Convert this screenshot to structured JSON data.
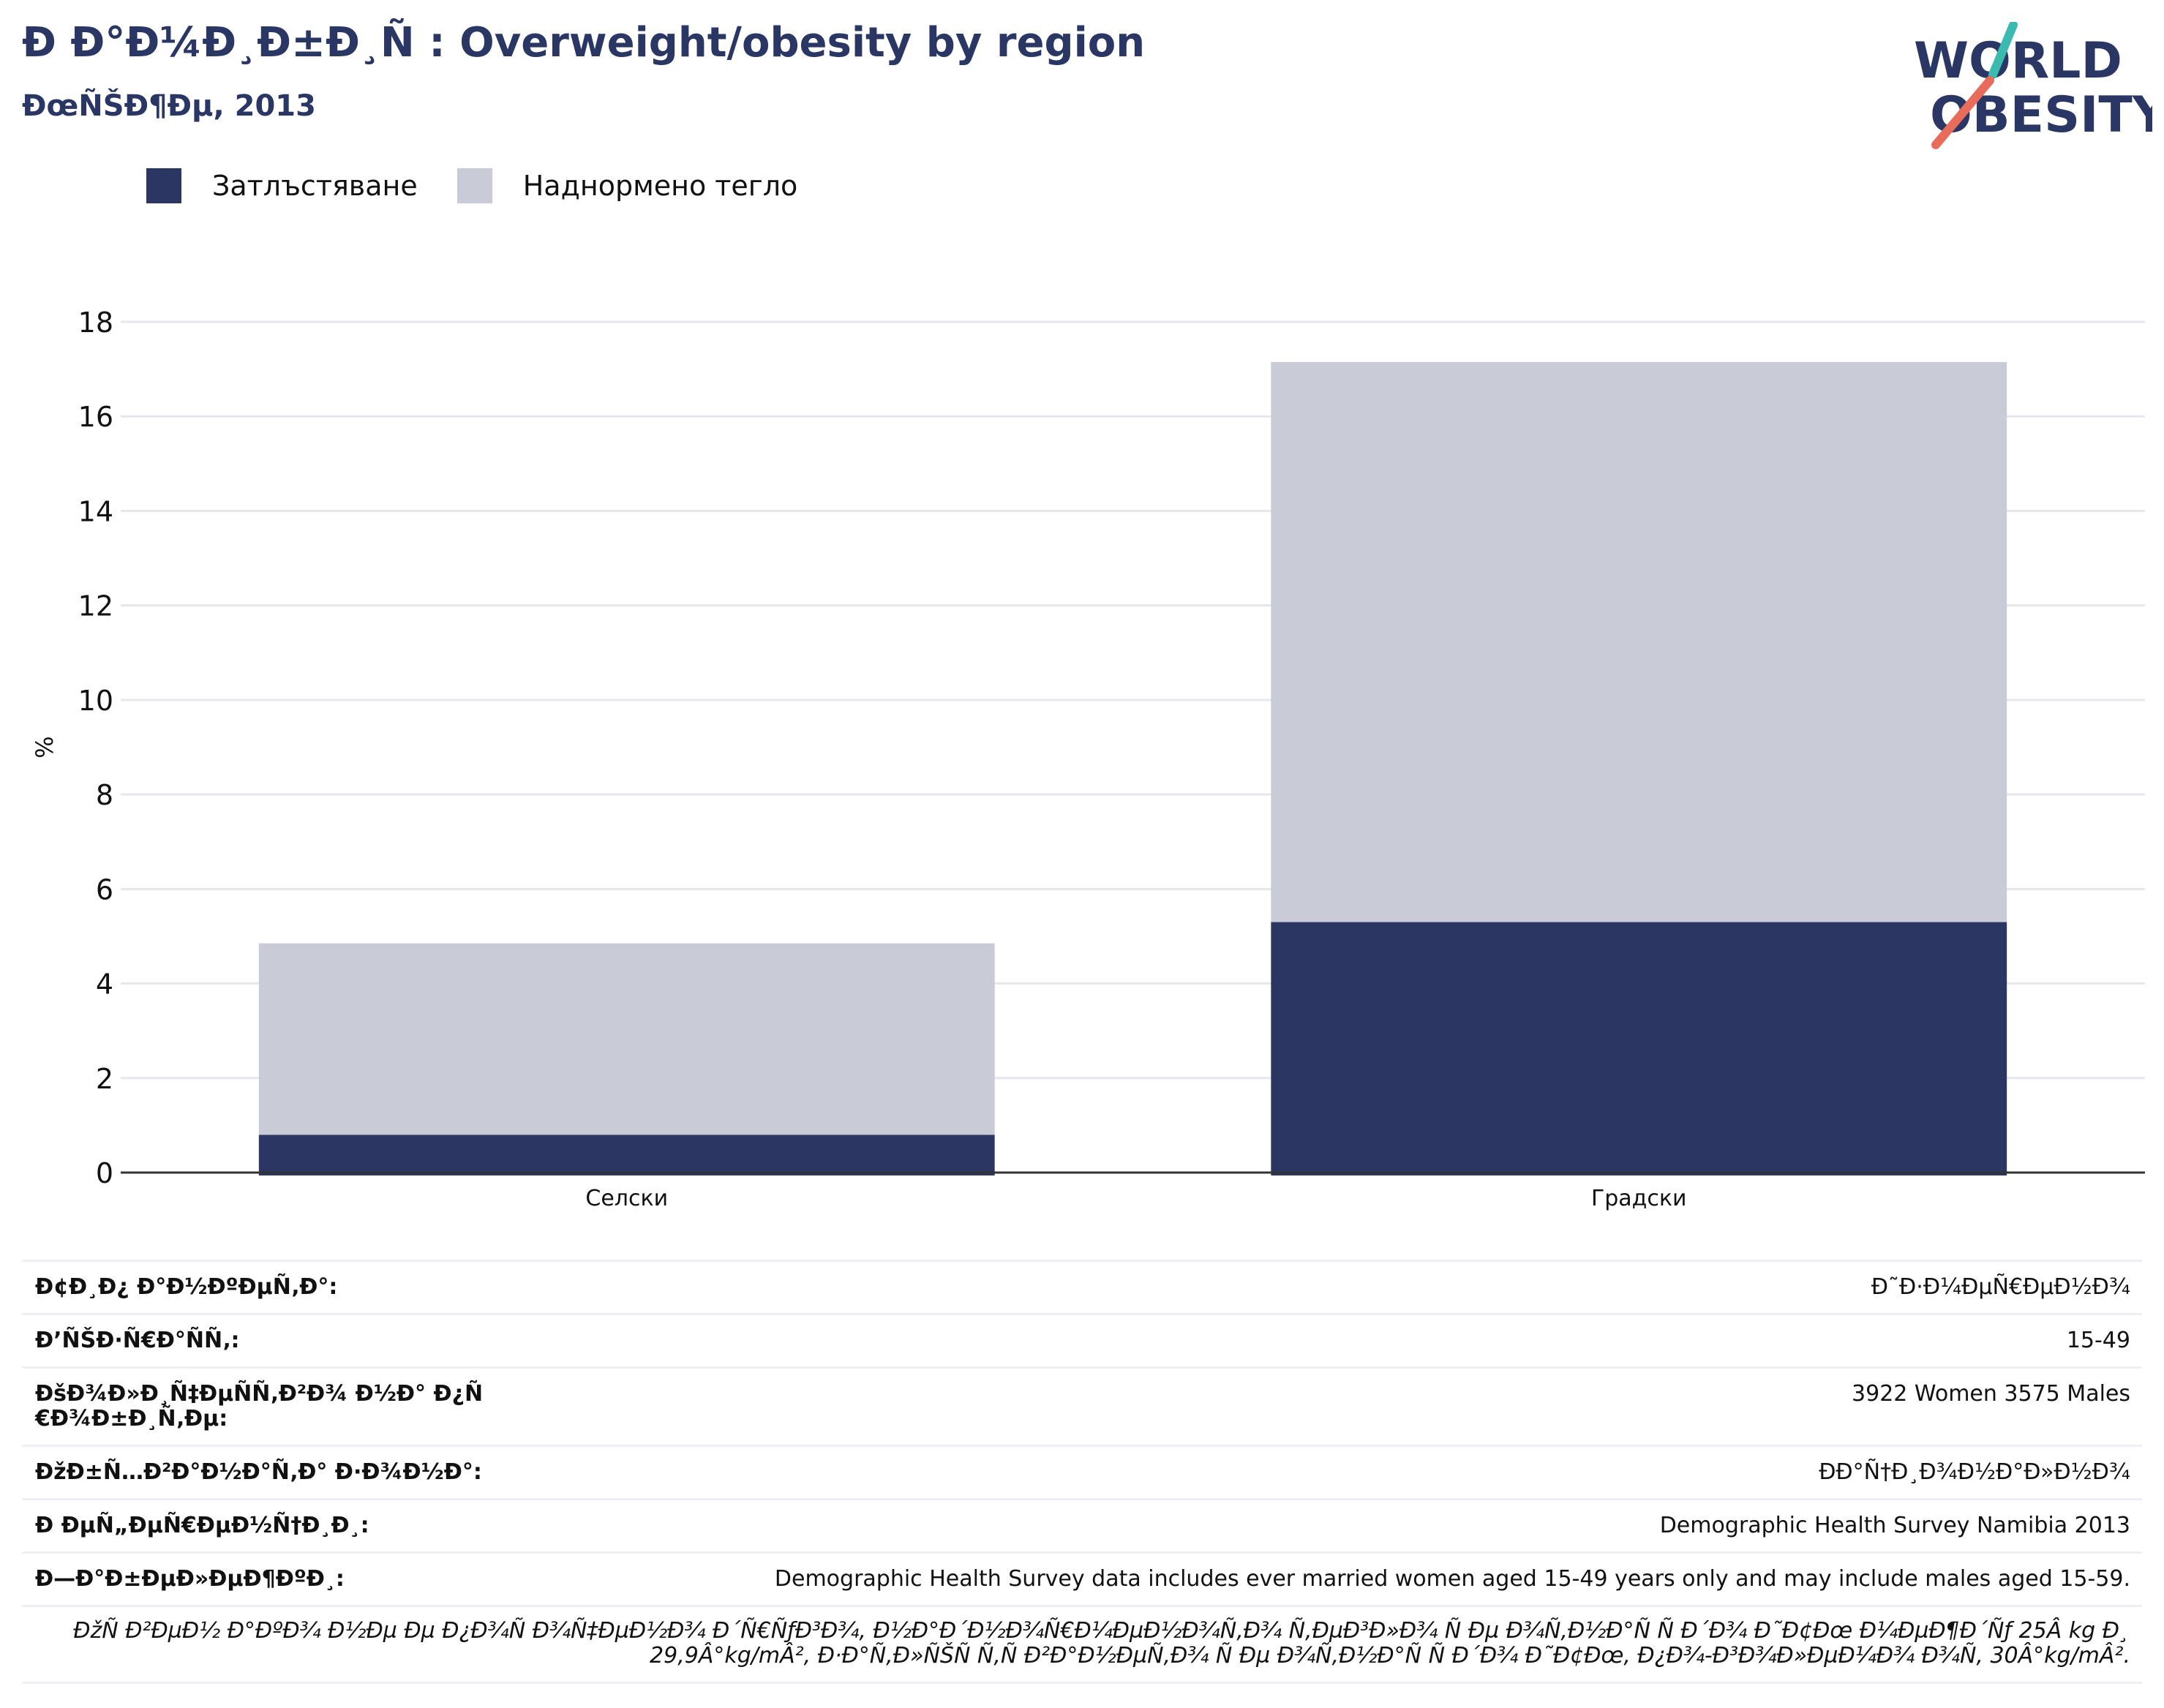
{
  "header": {
    "title": "Ð Ð°Ð¼Ð¸Ð±Ð¸Ñ : Overweight/obesity by region",
    "subtitle": "ÐœÑŠÐ¶Ðµ, 2013"
  },
  "logo": {
    "line1": "WORLD",
    "line2": "OBESITY"
  },
  "colors": {
    "obesity": "#2b3663",
    "overweight": "#c9cbd6",
    "gridline": "#e6e7ec",
    "axis": "#333333"
  },
  "legend": [
    {
      "label": "Затлъстяване",
      "color": "#2b3663"
    },
    {
      "label": "Наднормено тегло",
      "color": "#c9cbd6"
    }
  ],
  "chart_data": {
    "type": "bar",
    "stacked": true,
    "categories": [
      "Селски",
      "Градски"
    ],
    "series": [
      {
        "name": "Затлъстяване",
        "values": [
          0.8,
          5.3
        ]
      },
      {
        "name": "Наднормено тегло",
        "values": [
          4.05,
          11.85
        ]
      }
    ],
    "title": "Ð Ð°Ð¼Ð¸Ð±Ð¸Ñ : Overweight/obesity by region",
    "subtitle": "ÐœÑŠÐ¶Ðµ, 2013",
    "xlabel": "",
    "ylabel": "%",
    "ylim": [
      0,
      18
    ],
    "yticks": [
      0,
      2,
      4,
      6,
      8,
      10,
      12,
      14,
      16,
      18
    ],
    "grid": true,
    "legend_position": "top-left"
  },
  "meta": {
    "rows": [
      {
        "label": "Ð¢Ð¸Ð¿ Ð°Ð½ÐºÐµÑ‚Ð°:",
        "value": "Ð˜Ð·Ð¼ÐµÑ€ÐµÐ½Ð¾"
      },
      {
        "label": "Ð’ÑŠÐ·Ñ€Ð°ÑÑ‚:",
        "value": "15-49"
      },
      {
        "label": "ÐšÐ¾Ð»Ð¸Ñ‡ÐµÑÑ‚Ð²Ð¾ Ð½Ð° Ð¿Ñ€Ð¾Ð±Ð¸Ñ‚Ðµ:",
        "value": "3922 Women 3575 Males"
      },
      {
        "label": "ÐžÐ±Ñ…Ð²Ð°Ð½Ð°Ñ‚Ð° Ð·Ð¾Ð½Ð°:",
        "value": "ÐÐ°Ñ†Ð¸Ð¾Ð½Ð°Ð»Ð½Ð¾"
      },
      {
        "label": "Ð ÐµÑ„ÐµÑ€ÐµÐ½Ñ†Ð¸Ð¸:",
        "value": "Demographic Health Survey Namibia 2013"
      },
      {
        "label": "Ð—Ð°Ð±ÐµÐ»ÐµÐ¶ÐºÐ¸:",
        "value": "Demographic Health Survey data includes ever married women aged 15-49 years only and may include males aged 15-59."
      }
    ],
    "note": "ÐžÑ Ð²ÐµÐ½ Ð°ÐºÐ¾ Ð½Ðµ Ðµ Ð¿Ð¾Ñ Ð¾Ñ‡ÐµÐ½Ð¾ Ð´Ñ€ÑƒÐ³Ð¾, Ð½Ð°Ð´Ð½Ð¾Ñ€Ð¼ÐµÐ½Ð¾Ñ‚Ð¾ Ñ‚ÐµÐ³Ð»Ð¾ Ñ Ðµ Ð¾Ñ‚Ð½Ð°Ñ Ñ Ð´Ð¾ Ð˜Ð¢Ðœ Ð¼ÐµÐ¶Ð´Ñƒ 25Â kg Ð¸ 29,9Â°kg/mÂ², Ð·Ð°Ñ‚Ð»ÑŠÑ Ñ‚Ñ Ð²Ð°Ð½ÐµÑ‚Ð¾ Ñ Ðµ Ð¾Ñ‚Ð½Ð°Ñ Ñ  Ð´Ð¾ Ð˜Ð¢Ðœ, Ð¿Ð¾-Ð³Ð¾Ð»ÐµÐ¼Ð¾ Ð¾Ñ‚ 30Â°kg/mÂ²."
  }
}
